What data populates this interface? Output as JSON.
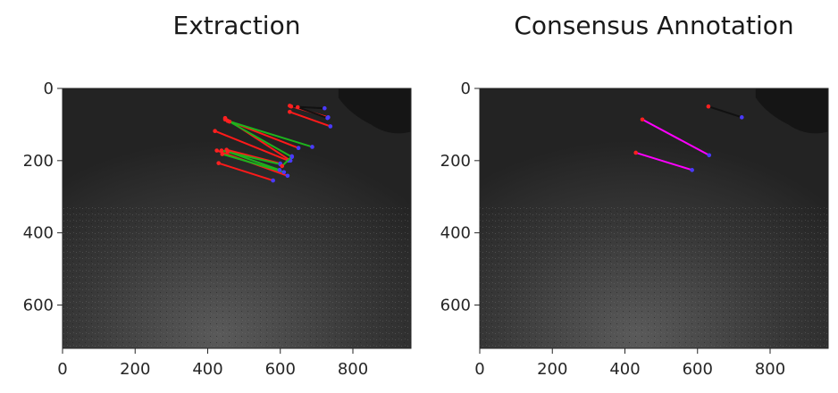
{
  "chart_data": [
    {
      "type": "image-annotation",
      "title": "Extraction",
      "xlim": [
        0,
        960
      ],
      "ylim": [
        720,
        0
      ],
      "xticks": [
        0,
        200,
        400,
        600,
        800
      ],
      "yticks": [
        0,
        200,
        400,
        600
      ],
      "segments": [
        {
          "color": "#ff1a1a",
          "x1": 448,
          "y1": 86,
          "x2": 650,
          "y2": 165
        },
        {
          "color": "#ff1a1a",
          "x1": 420,
          "y1": 118,
          "x2": 622,
          "y2": 200
        },
        {
          "color": "#ff1a1a",
          "x1": 448,
          "y1": 82,
          "x2": 628,
          "y2": 200
        },
        {
          "color": "#ff1a1a",
          "x1": 425,
          "y1": 172,
          "x2": 620,
          "y2": 242
        },
        {
          "color": "#ff1a1a",
          "x1": 430,
          "y1": 207,
          "x2": 580,
          "y2": 255
        },
        {
          "color": "#ff1a1a",
          "x1": 452,
          "y1": 170,
          "x2": 600,
          "y2": 208
        },
        {
          "color": "#ff1a1a",
          "x1": 626,
          "y1": 48,
          "x2": 732,
          "y2": 80
        },
        {
          "color": "#ff1a1a",
          "x1": 626,
          "y1": 65,
          "x2": 738,
          "y2": 105
        },
        {
          "color": "#1db31d",
          "x1": 455,
          "y1": 90,
          "x2": 688,
          "y2": 162
        },
        {
          "color": "#1db31d",
          "x1": 460,
          "y1": 92,
          "x2": 632,
          "y2": 190
        },
        {
          "color": "#1db31d",
          "x1": 440,
          "y1": 182,
          "x2": 610,
          "y2": 232
        },
        {
          "color": "#1db31d",
          "x1": 438,
          "y1": 172,
          "x2": 600,
          "y2": 210
        },
        {
          "color": "#1db31d",
          "x1": 455,
          "y1": 175,
          "x2": 598,
          "y2": 226
        },
        {
          "color": "#1db31d",
          "x1": 605,
          "y1": 215,
          "x2": 632,
          "y2": 188
        },
        {
          "color": "#111111",
          "x1": 630,
          "y1": 50,
          "x2": 722,
          "y2": 55
        },
        {
          "color": "#111111",
          "x1": 648,
          "y1": 52,
          "x2": 730,
          "y2": 82
        }
      ]
    },
    {
      "type": "image-annotation",
      "title": "Consensus Annotation",
      "xlim": [
        0,
        960
      ],
      "ylim": [
        720,
        0
      ],
      "xticks": [
        0,
        200,
        400,
        600,
        800
      ],
      "yticks": [
        0,
        200,
        400,
        600
      ],
      "segments": [
        {
          "color": "#ff00ff",
          "x1": 448,
          "y1": 86,
          "x2": 632,
          "y2": 185
        },
        {
          "color": "#ff00ff",
          "x1": 430,
          "y1": 178,
          "x2": 585,
          "y2": 226
        },
        {
          "color": "#111111",
          "x1": 630,
          "y1": 50,
          "x2": 722,
          "y2": 80
        }
      ]
    }
  ]
}
